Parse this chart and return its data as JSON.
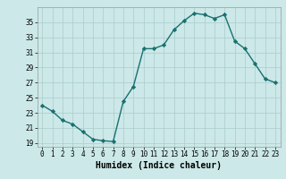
{
  "x": [
    0,
    1,
    2,
    3,
    4,
    5,
    6,
    7,
    8,
    9,
    10,
    11,
    12,
    13,
    14,
    15,
    16,
    17,
    18,
    19,
    20,
    21,
    22,
    23
  ],
  "y": [
    24.0,
    23.2,
    22.0,
    21.5,
    20.5,
    19.5,
    19.3,
    19.2,
    24.5,
    26.5,
    31.5,
    31.5,
    32.0,
    34.0,
    35.2,
    36.2,
    36.0,
    35.5,
    36.0,
    32.5,
    31.5,
    29.5,
    27.5,
    27.0
  ],
  "line_color": "#1a7070",
  "marker": "D",
  "markersize": 2.2,
  "linewidth": 1.0,
  "xlabel": "Humidex (Indice chaleur)",
  "xlim": [
    -0.5,
    23.5
  ],
  "ylim": [
    18.5,
    37.0
  ],
  "yticks": [
    19,
    21,
    23,
    25,
    27,
    29,
    31,
    33,
    35
  ],
  "xticks": [
    0,
    1,
    2,
    3,
    4,
    5,
    6,
    7,
    8,
    9,
    10,
    11,
    12,
    13,
    14,
    15,
    16,
    17,
    18,
    19,
    20,
    21,
    22,
    23
  ],
  "bg_color": "#cce8e8",
  "grid_color": "#aacccc",
  "tick_fontsize": 5.5,
  "xlabel_fontsize": 7.0
}
